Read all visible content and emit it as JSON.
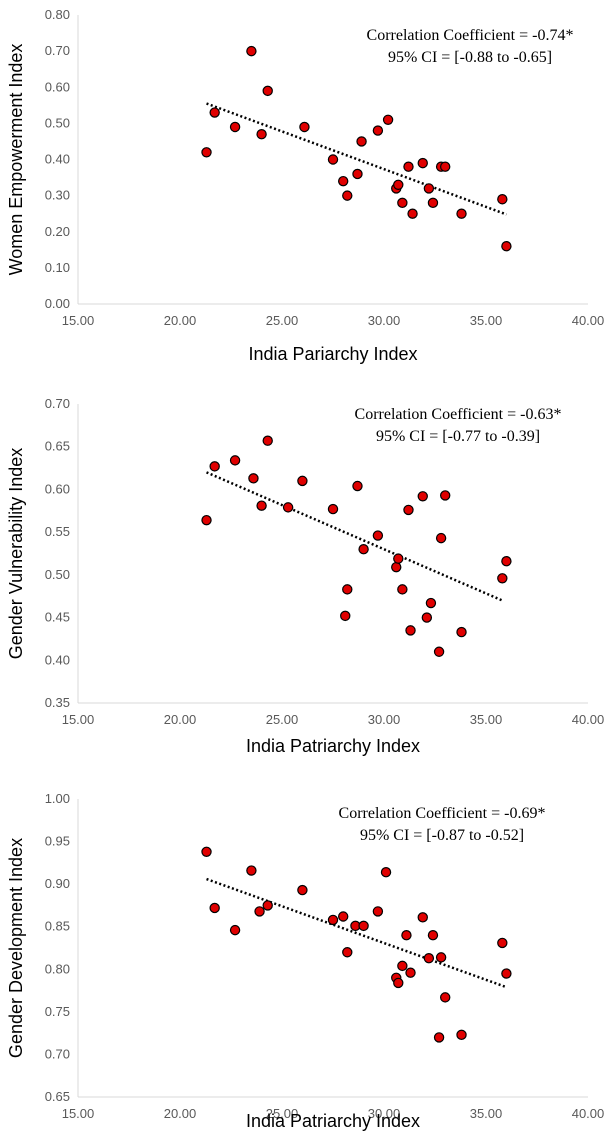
{
  "chart_data": [
    {
      "type": "scatter",
      "xlabel": "India Pariarchy Index",
      "ylabel": "Women Empowerment Index",
      "xlim": [
        15,
        40
      ],
      "ylim": [
        0,
        0.8
      ],
      "xticks": [
        "15.00",
        "20.00",
        "25.00",
        "30.00",
        "35.00",
        "40.00"
      ],
      "yticks": [
        "0.00",
        "0.10",
        "0.20",
        "0.30",
        "0.40",
        "0.50",
        "0.60",
        "0.70",
        "0.80"
      ],
      "annotation": [
        "Correlation Coefficient = -0.74*",
        "95% CI = [-0.88 to -0.65]"
      ],
      "trendline": {
        "x": [
          21.3,
          36.0
        ],
        "y": [
          0.555,
          0.248
        ]
      },
      "points": [
        [
          21.3,
          0.42
        ],
        [
          21.7,
          0.53
        ],
        [
          22.7,
          0.49
        ],
        [
          23.5,
          0.7
        ],
        [
          24.0,
          0.47
        ],
        [
          24.3,
          0.59
        ],
        [
          26.1,
          0.49
        ],
        [
          27.5,
          0.4
        ],
        [
          28.0,
          0.34
        ],
        [
          28.2,
          0.3
        ],
        [
          28.7,
          0.36
        ],
        [
          28.9,
          0.45
        ],
        [
          29.7,
          0.48
        ],
        [
          30.2,
          0.51
        ],
        [
          30.6,
          0.32
        ],
        [
          30.7,
          0.33
        ],
        [
          30.9,
          0.28
        ],
        [
          31.2,
          0.38
        ],
        [
          31.4,
          0.25
        ],
        [
          31.9,
          0.39
        ],
        [
          32.2,
          0.32
        ],
        [
          32.4,
          0.28
        ],
        [
          32.8,
          0.38
        ],
        [
          33.0,
          0.38
        ],
        [
          33.8,
          0.25
        ],
        [
          35.8,
          0.29
        ],
        [
          36.0,
          0.16
        ]
      ]
    },
    {
      "type": "scatter",
      "xlabel": "India Patriarchy Index",
      "ylabel": "Gender Vulnerability Index",
      "xlim": [
        15,
        40
      ],
      "ylim": [
        0.35,
        0.7
      ],
      "xticks": [
        "15.00",
        "20.00",
        "25.00",
        "30.00",
        "35.00",
        "40.00"
      ],
      "yticks": [
        "0.35",
        "0.40",
        "0.45",
        "0.50",
        "0.55",
        "0.60",
        "0.65",
        "0.70"
      ],
      "annotation": [
        "Correlation Coefficient = -0.63*",
        "95% CI = [-0.77 to -0.39]"
      ],
      "trendline": {
        "x": [
          21.3,
          35.8
        ],
        "y": [
          0.62,
          0.47
        ]
      },
      "points": [
        [
          21.3,
          0.564
        ],
        [
          21.7,
          0.627
        ],
        [
          22.7,
          0.634
        ],
        [
          23.6,
          0.613
        ],
        [
          24.0,
          0.581
        ],
        [
          24.3,
          0.657
        ],
        [
          25.3,
          0.579
        ],
        [
          26.0,
          0.61
        ],
        [
          27.5,
          0.577
        ],
        [
          28.1,
          0.452
        ],
        [
          28.2,
          0.483
        ],
        [
          28.7,
          0.604
        ],
        [
          29.0,
          0.53
        ],
        [
          29.7,
          0.546
        ],
        [
          30.6,
          0.509
        ],
        [
          30.7,
          0.519
        ],
        [
          30.9,
          0.483
        ],
        [
          31.2,
          0.576
        ],
        [
          31.3,
          0.435
        ],
        [
          31.9,
          0.592
        ],
        [
          32.1,
          0.45
        ],
        [
          32.3,
          0.467
        ],
        [
          32.7,
          0.41
        ],
        [
          32.8,
          0.543
        ],
        [
          33.0,
          0.593
        ],
        [
          33.8,
          0.433
        ],
        [
          35.8,
          0.496
        ],
        [
          36.0,
          0.516
        ]
      ]
    },
    {
      "type": "scatter",
      "xlabel": "India Patriarchy Index",
      "ylabel": "Gender Development Index",
      "xlim": [
        15,
        40
      ],
      "ylim": [
        0.65,
        1.0
      ],
      "xticks": [
        "15.00",
        "20.00",
        "25.00",
        "30.00",
        "35.00",
        "40.00"
      ],
      "yticks": [
        "0.65",
        "0.70",
        "0.75",
        "0.80",
        "0.85",
        "0.90",
        "0.95",
        "1.00"
      ],
      "annotation": [
        "Correlation Coefficient = -0.69*",
        "95% CI = [-0.87 to -0.52]"
      ],
      "trendline": {
        "x": [
          21.3,
          36.0
        ],
        "y": [
          0.906,
          0.779
        ]
      },
      "points": [
        [
          21.3,
          0.938
        ],
        [
          21.7,
          0.872
        ],
        [
          22.7,
          0.846
        ],
        [
          23.5,
          0.916
        ],
        [
          23.9,
          0.868
        ],
        [
          24.3,
          0.875
        ],
        [
          26.0,
          0.893
        ],
        [
          27.5,
          0.858
        ],
        [
          28.0,
          0.862
        ],
        [
          28.2,
          0.82
        ],
        [
          28.6,
          0.851
        ],
        [
          29.0,
          0.851
        ],
        [
          29.7,
          0.868
        ],
        [
          30.1,
          0.914
        ],
        [
          30.6,
          0.79
        ],
        [
          30.7,
          0.784
        ],
        [
          30.9,
          0.804
        ],
        [
          31.1,
          0.84
        ],
        [
          31.3,
          0.796
        ],
        [
          31.9,
          0.861
        ],
        [
          32.2,
          0.813
        ],
        [
          32.4,
          0.84
        ],
        [
          32.7,
          0.72
        ],
        [
          32.8,
          0.814
        ],
        [
          33.0,
          0.767
        ],
        [
          33.8,
          0.723
        ],
        [
          35.8,
          0.831
        ],
        [
          36.0,
          0.795
        ]
      ]
    }
  ]
}
